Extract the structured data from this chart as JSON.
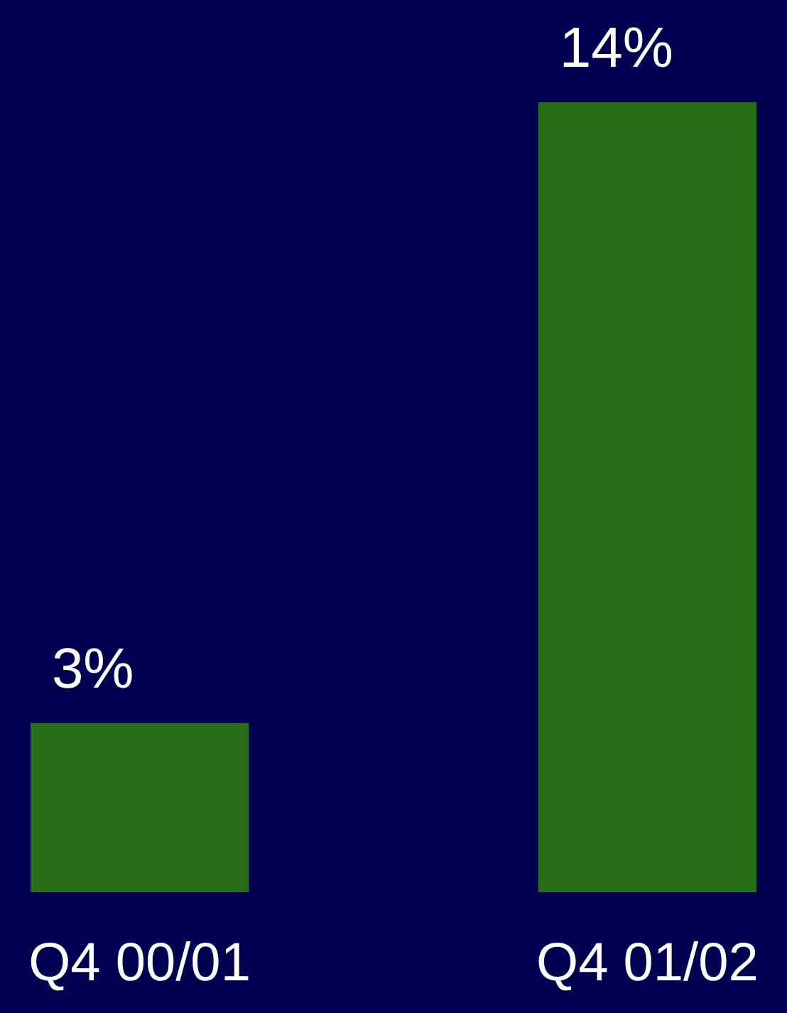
{
  "chart_data": {
    "type": "bar",
    "categories": [
      "Q4 00/01",
      "Q4 01/02"
    ],
    "values": [
      3,
      14
    ],
    "value_labels": [
      "3%",
      "14%"
    ],
    "color": "#276e19"
  }
}
